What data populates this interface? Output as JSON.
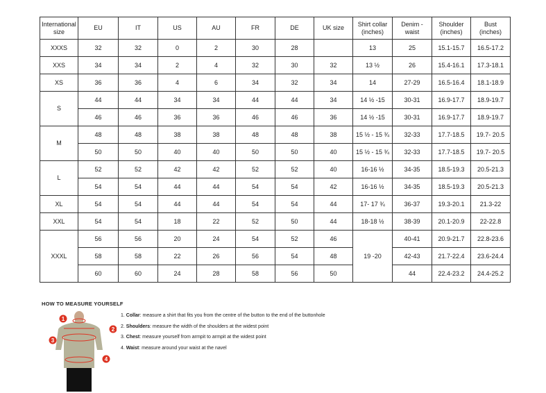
{
  "table": {
    "header": {
      "size": "International size",
      "eu": "EU",
      "it": "IT",
      "us": "US",
      "au": "AU",
      "fr": "FR",
      "de": "DE",
      "uk": "UK size",
      "collar": "Shirt collar (inches)",
      "denim": "Denim - waist",
      "shoulder": "Shoulder (inches)",
      "bust": "Bust (inches)"
    },
    "rows": [
      {
        "size": "XXXS",
        "eu": "32",
        "it": "32",
        "us": "0",
        "au": "2",
        "fr": "30",
        "de": "28",
        "collar": "13",
        "denim": "25",
        "shoulder": "15.1-15.7",
        "bust": "16.5-17.2"
      },
      {
        "size": "XXS",
        "eu": "34",
        "it": "34",
        "us": "2",
        "au": "4",
        "fr": "32",
        "de": "30",
        "uk": "32",
        "collar": "13 ½",
        "denim": "26",
        "shoulder": "15.4-16.1",
        "bust": "17.3-18.1"
      },
      {
        "size": "XS",
        "eu": "36",
        "it": "36",
        "us": "4",
        "au": "6",
        "fr": "34",
        "de": "32",
        "uk": "34",
        "collar": "14",
        "denim": "27-29",
        "shoulder": "16.5-16.4",
        "bust": "18.1-18.9"
      },
      {
        "size": "S",
        "eu": "44",
        "it": "44",
        "us": "34",
        "au": "34",
        "fr": "44",
        "de": "44",
        "uk": "34",
        "collar": "14 ½ -15",
        "denim": "30-31",
        "shoulder": "16.9-17.7",
        "bust": "18.9-19.7"
      },
      {
        "eu": "46",
        "it": "46",
        "us": "36",
        "au": "36",
        "fr": "46",
        "de": "46",
        "uk": "36",
        "collar": "14 ½ -15",
        "denim": "30-31",
        "shoulder": "16.9-17.7",
        "bust": "18.9-19.7"
      },
      {
        "size": "M",
        "eu": "48",
        "it": "48",
        "us": "38",
        "au": "38",
        "fr": "48",
        "de": "48",
        "uk": "38",
        "collar": "15 ½ - 15 ¾",
        "denim": "32-33",
        "shoulder": "17.7-18.5",
        "bust": "19.7- 20.5"
      },
      {
        "eu": "50",
        "it": "50",
        "us": "40",
        "au": "40",
        "fr": "50",
        "de": "50",
        "uk": "40",
        "collar": "15 ½ - 15 ¾",
        "denim": "32-33",
        "shoulder": "17.7-18.5",
        "bust": "19.7- 20.5"
      },
      {
        "size": "L",
        "eu": "52",
        "it": "52",
        "us": "42",
        "au": "42",
        "fr": "52",
        "de": "52",
        "uk": "40",
        "collar": "16-16 ½",
        "denim": "34-35",
        "shoulder": "18.5-19.3",
        "bust": "20.5-21.3"
      },
      {
        "eu": "54",
        "it": "54",
        "us": "44",
        "au": "44",
        "fr": "54",
        "de": "54",
        "uk": "42",
        "collar": "16-16 ½",
        "denim": "34-35",
        "shoulder": "18.5-19.3",
        "bust": "20.5-21.3"
      },
      {
        "size": "XL",
        "eu": "54",
        "it": "54",
        "us": "44",
        "au": "44",
        "fr": "54",
        "de": "54",
        "uk": "44",
        "collar": "17- 17 ¾",
        "denim": "36-37",
        "shoulder": "19.3-20.1",
        "bust": "21.3-22"
      },
      {
        "size": "XXL",
        "eu": "54",
        "it": "54",
        "us": "18",
        "au": "22",
        "fr": "52",
        "de": "50",
        "uk": "44",
        "collar": "18-18 ½",
        "denim": "38-39",
        "shoulder": "20.1-20.9",
        "bust": "22-22.8"
      },
      {
        "size": "XXXL",
        "eu": "56",
        "it": "56",
        "us": "20",
        "au": "24",
        "fr": "54",
        "de": "52",
        "uk": "46",
        "collar": "19 -20",
        "denim": "40-41",
        "shoulder": "20.9-21.7",
        "bust": "22.8-23.6"
      },
      {
        "eu": "58",
        "it": "58",
        "us": "22",
        "au": "26",
        "fr": "56",
        "de": "54",
        "uk": "48",
        "denim": "42-43",
        "shoulder": "21.7-22.4",
        "bust": "23.6-24.4"
      },
      {
        "eu": "60",
        "it": "60",
        "us": "24",
        "au": "28",
        "fr": "58",
        "de": "56",
        "uk": "50",
        "denim": "44",
        "shoulder": "22.4-23.2",
        "bust": "24.4-25.2"
      }
    ]
  },
  "guide": {
    "title": "HOW TO MEASURE YOURSELF",
    "markers": [
      "1",
      "2",
      "3",
      "4"
    ],
    "items": [
      {
        "number": "1.",
        "label": "Collar",
        "text": ": measure a shirt that fits you from the centre of the button to the end of the buttonhole"
      },
      {
        "number": "2.",
        "label": "Shoulders",
        "text": ": measure the width of the shoulders at the widest point"
      },
      {
        "number": "3.",
        "label": "Chest",
        "text": ": measure yourself from armpit to armpit at the widest point"
      },
      {
        "number": "4.",
        "label": "Waist",
        "text": ": measure around your waist at the navel"
      }
    ]
  }
}
